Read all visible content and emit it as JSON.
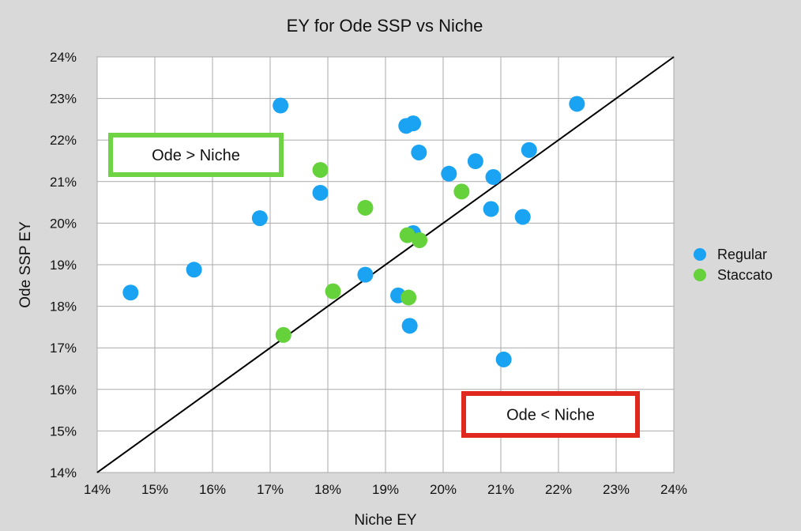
{
  "chart_data": {
    "type": "scatter",
    "title": "EY for Ode SSP vs Niche",
    "xlabel": "Niche EY",
    "ylabel": "Ode SSP EY",
    "xlim": [
      14,
      24
    ],
    "ylim": [
      14,
      24
    ],
    "x_ticks": [
      "14%",
      "15%",
      "16%",
      "17%",
      "18%",
      "19%",
      "20%",
      "21%",
      "22%",
      "23%",
      "24%"
    ],
    "y_ticks": [
      "14%",
      "15%",
      "16%",
      "17%",
      "18%",
      "19%",
      "20%",
      "21%",
      "22%",
      "23%",
      "24%"
    ],
    "grid": true,
    "legend_position": "right",
    "reference_line": {
      "from": [
        14,
        14
      ],
      "to": [
        24,
        24
      ],
      "color": "#000000"
    },
    "series": [
      {
        "name": "Regular",
        "color": "#1aa3f2",
        "points": [
          {
            "x": 14.58,
            "y": 18.33
          },
          {
            "x": 15.68,
            "y": 18.88
          },
          {
            "x": 16.82,
            "y": 20.12
          },
          {
            "x": 17.18,
            "y": 22.83
          },
          {
            "x": 17.87,
            "y": 20.73
          },
          {
            "x": 18.65,
            "y": 18.76
          },
          {
            "x": 19.22,
            "y": 18.26
          },
          {
            "x": 19.36,
            "y": 22.34
          },
          {
            "x": 19.48,
            "y": 22.4
          },
          {
            "x": 19.58,
            "y": 21.7
          },
          {
            "x": 19.42,
            "y": 17.53
          },
          {
            "x": 19.48,
            "y": 19.76
          },
          {
            "x": 20.1,
            "y": 21.19
          },
          {
            "x": 20.56,
            "y": 21.49
          },
          {
            "x": 20.87,
            "y": 21.11
          },
          {
            "x": 20.83,
            "y": 20.34
          },
          {
            "x": 21.05,
            "y": 16.72
          },
          {
            "x": 21.38,
            "y": 20.15
          },
          {
            "x": 21.49,
            "y": 21.76
          },
          {
            "x": 22.32,
            "y": 22.87
          }
        ]
      },
      {
        "name": "Staccato",
        "color": "#65d23b",
        "points": [
          {
            "x": 17.23,
            "y": 17.31
          },
          {
            "x": 17.87,
            "y": 21.28
          },
          {
            "x": 18.09,
            "y": 18.36
          },
          {
            "x": 18.65,
            "y": 20.37
          },
          {
            "x": 19.38,
            "y": 19.71
          },
          {
            "x": 19.4,
            "y": 18.21
          },
          {
            "x": 19.59,
            "y": 19.59
          },
          {
            "x": 20.32,
            "y": 20.76
          }
        ]
      }
    ],
    "annotations": [
      {
        "text": "Ode > Niche",
        "border_color": "#6fd443"
      },
      {
        "text": "Ode < Niche",
        "border_color": "#e0281e"
      }
    ]
  }
}
